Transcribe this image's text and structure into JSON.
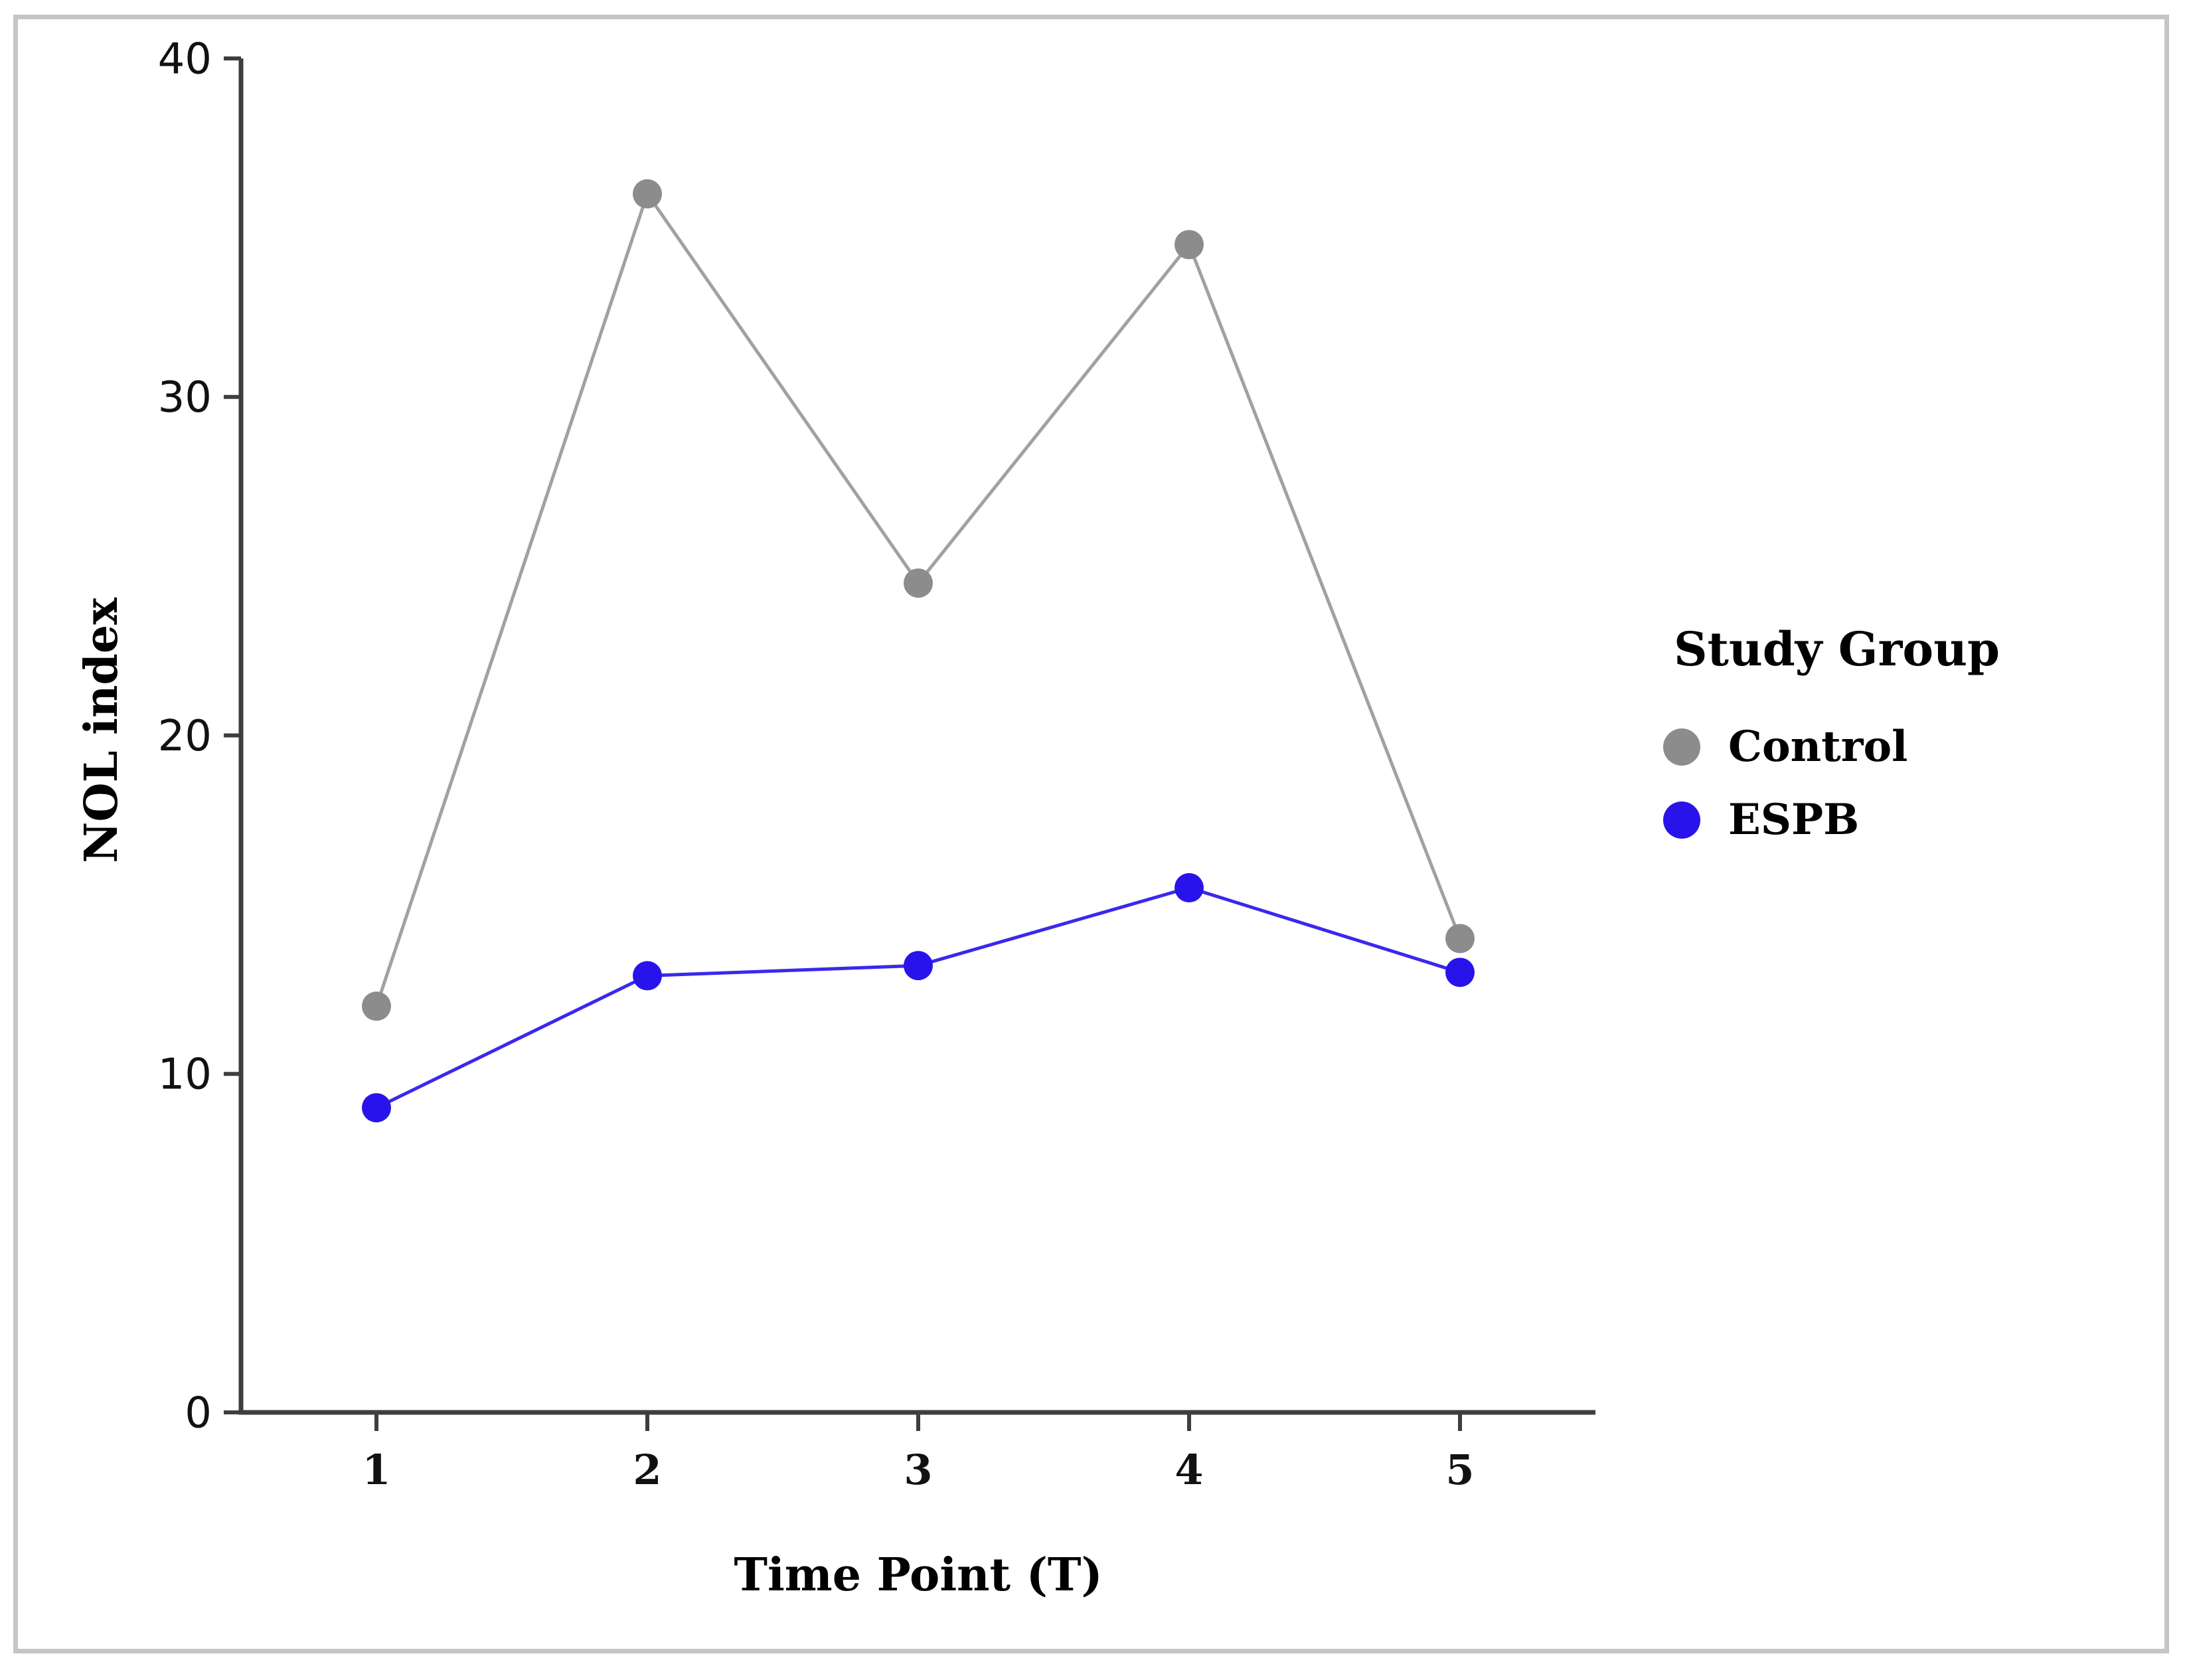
{
  "chart_data": {
    "type": "line",
    "x": [
      1,
      2,
      3,
      4,
      5
    ],
    "xticks": [
      "1",
      "2",
      "3",
      "4",
      "5"
    ],
    "yticks": [
      0,
      10,
      20,
      30,
      40
    ],
    "ylim": [
      0,
      40
    ],
    "xlabel": "Time Point (T)",
    "ylabel": "NOL index",
    "legend_title": "Study Group",
    "legend_position": "right-center",
    "grid": false,
    "series": [
      {
        "name": "Control",
        "marker_color": "#8c8c8c",
        "line_color": "#a1a1a1",
        "values": [
          12,
          36,
          24.5,
          34.5,
          14
        ]
      },
      {
        "name": "ESPB",
        "marker_color": "#2814eb",
        "line_color": "#3a28ee",
        "values": [
          9,
          12.9,
          13.2,
          15.5,
          13
        ]
      }
    ]
  }
}
